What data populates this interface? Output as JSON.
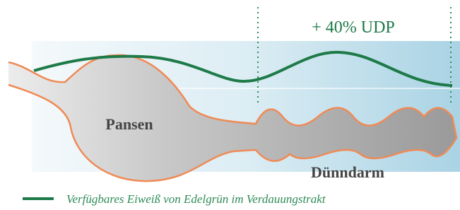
{
  "annotation": "+ 40% UDP",
  "labels": {
    "stomach": "Pansen",
    "intestine": "Dünndarm"
  },
  "legend": "Verfügbares Eiweiß von Edelgrün im Verdauungstrakt"
}
